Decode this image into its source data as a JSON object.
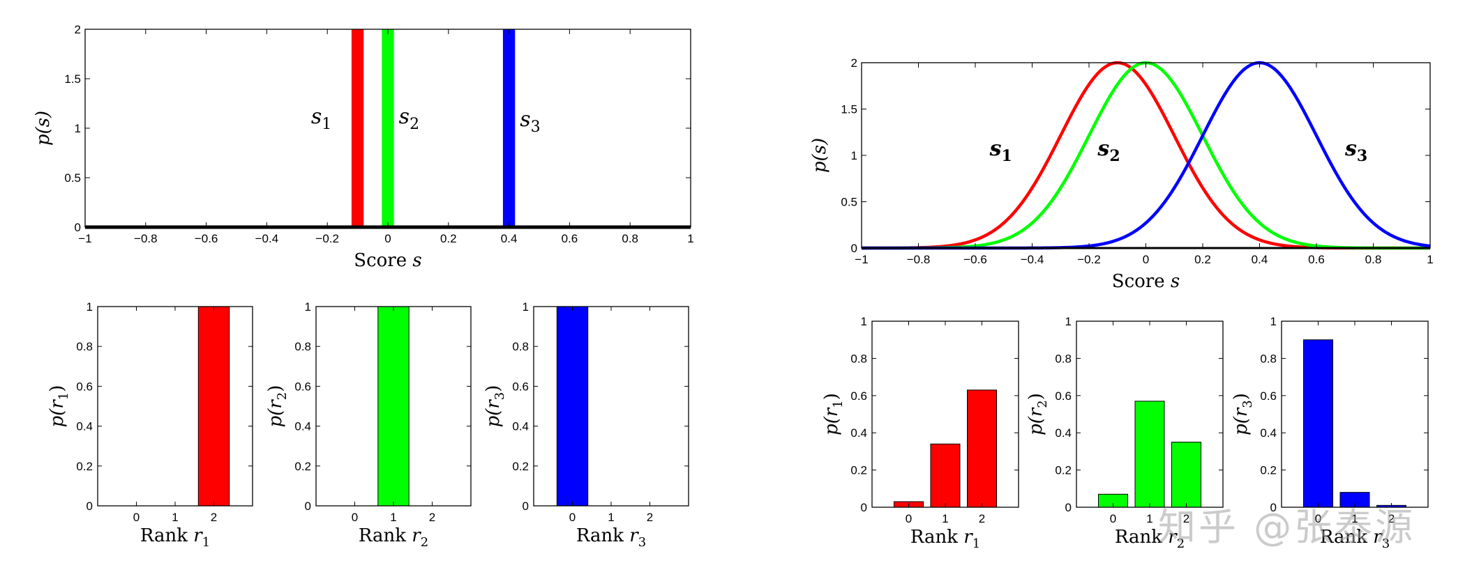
{
  "watermark": "知乎 @张泰源",
  "chart_data": [
    {
      "id": "left-score",
      "type": "bar",
      "xlabel": "Score",
      "xlabel_var": "s",
      "ylabel": "p(s)",
      "xlim": [
        -1,
        1
      ],
      "ylim": [
        0,
        2
      ],
      "xticks": [
        "−1",
        "−0.8",
        "−0.6",
        "−0.4",
        "−0.2",
        "0",
        "0.2",
        "0.4",
        "0.6",
        "0.8",
        "1"
      ],
      "yticks": [
        "0",
        "0.5",
        "1",
        "1.5",
        "2"
      ],
      "series": [
        {
          "name": "s1",
          "label_base": "s",
          "label_sub": "1",
          "color": "#ff0000",
          "x": -0.1,
          "value": 2
        },
        {
          "name": "s2",
          "label_base": "s",
          "label_sub": "2",
          "color": "#00ff00",
          "x": 0.0,
          "value": 2
        },
        {
          "name": "s3",
          "label_base": "s",
          "label_sub": "3",
          "color": "#0000ff",
          "x": 0.4,
          "value": 2
        }
      ]
    },
    {
      "id": "right-score",
      "type": "line",
      "xlabel": "Score",
      "xlabel_var": "s",
      "ylabel": "p(s)",
      "xlim": [
        -1,
        1
      ],
      "ylim": [
        0,
        2
      ],
      "xticks": [
        "−1",
        "−0.8",
        "−0.6",
        "−0.4",
        "−0.2",
        "0",
        "0.2",
        "0.4",
        "0.6",
        "0.8",
        "1"
      ],
      "yticks": [
        "0",
        "0.5",
        "1",
        "1.5",
        "2"
      ],
      "series": [
        {
          "name": "s1",
          "label_base": "s",
          "label_sub": "1",
          "color": "#ff0000",
          "mean": -0.1,
          "sd": 0.2,
          "peak": 2
        },
        {
          "name": "s2",
          "label_base": "s",
          "label_sub": "2",
          "color": "#00ff00",
          "mean": 0.0,
          "sd": 0.2,
          "peak": 2
        },
        {
          "name": "s3",
          "label_base": "s",
          "label_sub": "3",
          "color": "#0000ff",
          "mean": 0.4,
          "sd": 0.2,
          "peak": 2
        }
      ]
    },
    {
      "id": "left-r1",
      "type": "bar",
      "xlabel": "Rank",
      "xlabel_var": "r",
      "xlabel_sub": "1",
      "ylabel": "p(r1)",
      "ylabel_sub": "1",
      "color": "#ff0000",
      "categories": [
        "0",
        "1",
        "2"
      ],
      "values": [
        0,
        0,
        1
      ],
      "ylim": [
        0,
        1
      ],
      "yticks": [
        "0",
        "0.2",
        "0.4",
        "0.6",
        "0.8",
        "1"
      ]
    },
    {
      "id": "left-r2",
      "type": "bar",
      "xlabel": "Rank",
      "xlabel_var": "r",
      "xlabel_sub": "2",
      "ylabel": "p(r2)",
      "ylabel_sub": "2",
      "color": "#00ff00",
      "categories": [
        "0",
        "1",
        "2"
      ],
      "values": [
        0,
        1,
        0
      ],
      "ylim": [
        0,
        1
      ],
      "yticks": [
        "0",
        "0.2",
        "0.4",
        "0.6",
        "0.8",
        "1"
      ]
    },
    {
      "id": "left-r3",
      "type": "bar",
      "xlabel": "Rank",
      "xlabel_var": "r",
      "xlabel_sub": "3",
      "ylabel": "p(r3)",
      "ylabel_sub": "3",
      "color": "#0000ff",
      "categories": [
        "0",
        "1",
        "2"
      ],
      "values": [
        1,
        0,
        0
      ],
      "ylim": [
        0,
        1
      ],
      "yticks": [
        "0",
        "0.2",
        "0.4",
        "0.6",
        "0.8",
        "1"
      ]
    },
    {
      "id": "right-r1",
      "type": "bar",
      "xlabel": "Rank",
      "xlabel_var": "r",
      "xlabel_sub": "1",
      "ylabel": "p(r1)",
      "ylabel_sub": "1",
      "color": "#ff0000",
      "categories": [
        "0",
        "1",
        "2"
      ],
      "values": [
        0.03,
        0.34,
        0.63
      ],
      "ylim": [
        0,
        1
      ],
      "yticks": [
        "0",
        "0.2",
        "0.4",
        "0.6",
        "0.8",
        "1"
      ]
    },
    {
      "id": "right-r2",
      "type": "bar",
      "xlabel": "Rank",
      "xlabel_var": "r",
      "xlabel_sub": "2",
      "ylabel": "p(r2)",
      "ylabel_sub": "2",
      "color": "#00ff00",
      "categories": [
        "0",
        "1",
        "2"
      ],
      "values": [
        0.07,
        0.57,
        0.35
      ],
      "ylim": [
        0,
        1
      ],
      "yticks": [
        "0",
        "0.2",
        "0.4",
        "0.6",
        "0.8",
        "1"
      ]
    },
    {
      "id": "right-r3",
      "type": "bar",
      "xlabel": "Rank",
      "xlabel_var": "r",
      "xlabel_sub": "3",
      "ylabel": "p(r3)",
      "ylabel_sub": "3",
      "color": "#0000ff",
      "categories": [
        "0",
        "1",
        "2"
      ],
      "values": [
        0.9,
        0.08,
        0.01
      ],
      "ylim": [
        0,
        1
      ],
      "yticks": [
        "0",
        "0.2",
        "0.4",
        "0.6",
        "0.8",
        "1"
      ]
    }
  ]
}
